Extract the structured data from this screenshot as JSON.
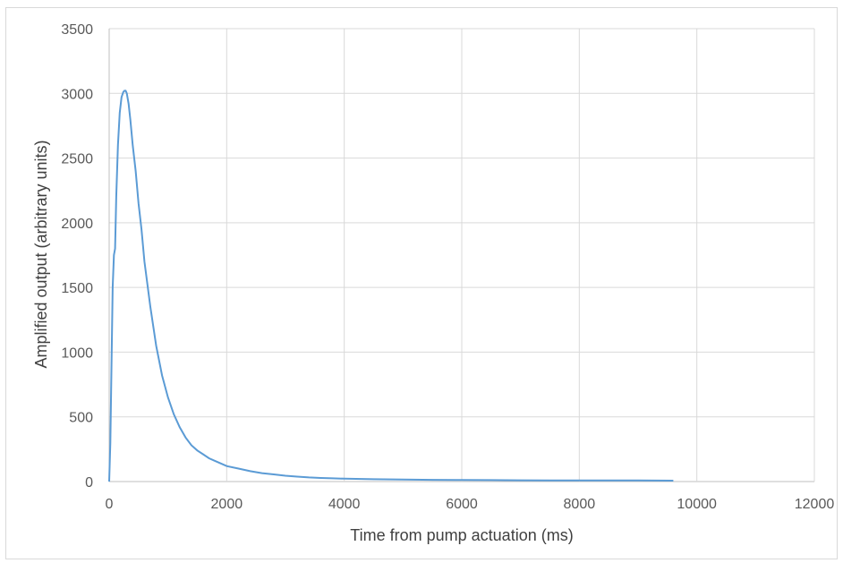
{
  "chart_data": {
    "type": "line",
    "title": "",
    "xlabel": "Time from pump actuation (ms)",
    "ylabel": "Amplified output (arbitrary units)",
    "xlim": [
      0,
      12000
    ],
    "ylim": [
      0,
      3500
    ],
    "x_ticks": [
      0,
      2000,
      4000,
      6000,
      8000,
      10000,
      12000
    ],
    "y_ticks": [
      0,
      500,
      1000,
      1500,
      2000,
      2500,
      3000,
      3500
    ],
    "x_tick_labels": [
      "0",
      "2000",
      "4000",
      "6000",
      "8000",
      "10000",
      "12000"
    ],
    "y_tick_labels": [
      "0",
      "500",
      "1000",
      "1500",
      "2000",
      "2500",
      "3000",
      "3500"
    ],
    "grid": true,
    "legend": "none",
    "series": [
      {
        "color": "#5b9bd5",
        "x": [
          0,
          20,
          40,
          60,
          80,
          100,
          120,
          150,
          180,
          210,
          240,
          260,
          280,
          300,
          330,
          360,
          400,
          450,
          500,
          550,
          600,
          700,
          800,
          900,
          1000,
          1100,
          1200,
          1300,
          1400,
          1500,
          1600,
          1700,
          1800,
          1900,
          2000,
          2200,
          2400,
          2600,
          2800,
          3000,
          3200,
          3400,
          3600,
          3800,
          4000,
          4500,
          5000,
          5500,
          6000,
          6500,
          7000,
          7500,
          8000,
          8500,
          9000,
          9600
        ],
        "values": [
          0,
          300,
          900,
          1500,
          1750,
          1800,
          2200,
          2600,
          2850,
          2970,
          3010,
          3020,
          3020,
          3000,
          2920,
          2800,
          2600,
          2400,
          2150,
          1950,
          1700,
          1350,
          1050,
          820,
          650,
          520,
          420,
          340,
          280,
          240,
          210,
          180,
          160,
          140,
          120,
          100,
          80,
          65,
          55,
          45,
          38,
          32,
          28,
          25,
          22,
          18,
          15,
          13,
          12,
          11,
          10,
          9,
          9,
          8,
          8,
          7
        ]
      }
    ]
  }
}
